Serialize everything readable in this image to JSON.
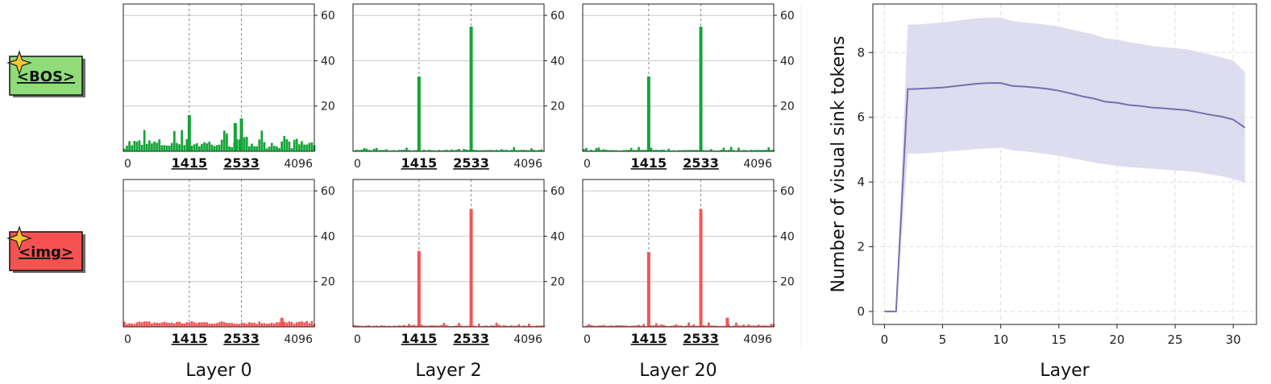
{
  "tokens": [
    {
      "label": "<BOS>",
      "fill": "#8fdc78",
      "bar_color": "#13a538"
    },
    {
      "label": "<img>",
      "fill": "#f75252",
      "bar_color": "#f45555"
    }
  ],
  "highlight_positions": [
    "1415",
    "2533"
  ],
  "x_end_label": "4096",
  "x_start_label": "0",
  "chart_data": [
    {
      "type": "bar",
      "layer_label": "Layer 0",
      "token": "<BOS>",
      "x_range": [
        0,
        4096
      ],
      "ylim": [
        0,
        65
      ],
      "yticks": [
        20,
        40,
        60
      ],
      "vertical_lines": [
        1415,
        2533
      ],
      "peaks": [
        {
          "x": 1415,
          "value": 16
        },
        {
          "x": 2533,
          "value": 14.5
        },
        {
          "x": 2400,
          "value": 12.5
        }
      ]
    },
    {
      "type": "bar",
      "layer_label": "Layer 2",
      "token": "<BOS>",
      "x_range": [
        0,
        4096
      ],
      "ylim": [
        0,
        65
      ],
      "yticks": [
        20,
        40,
        60
      ],
      "vertical_lines": [
        1415,
        2533
      ],
      "peaks": [
        {
          "x": 1415,
          "value": 33
        },
        {
          "x": 2533,
          "value": 55
        }
      ]
    },
    {
      "type": "bar",
      "layer_label": "Layer 20",
      "token": "<BOS>",
      "x_range": [
        0,
        4096
      ],
      "ylim": [
        0,
        65
      ],
      "yticks": [
        20,
        40,
        60
      ],
      "vertical_lines": [
        1415,
        2533
      ],
      "peaks": [
        {
          "x": 1415,
          "value": 33
        },
        {
          "x": 2533,
          "value": 55
        }
      ]
    },
    {
      "type": "bar",
      "layer_label": "Layer 0",
      "token": "<img>",
      "x_range": [
        0,
        4096
      ],
      "ylim": [
        0,
        65
      ],
      "yticks": [
        20,
        40,
        60
      ],
      "vertical_lines": [
        1415,
        2533
      ],
      "peaks": [
        {
          "x": 3400,
          "value": 4
        }
      ]
    },
    {
      "type": "bar",
      "layer_label": "Layer 2",
      "token": "<img>",
      "x_range": [
        0,
        4096
      ],
      "ylim": [
        0,
        65
      ],
      "yticks": [
        20,
        40,
        60
      ],
      "vertical_lines": [
        1415,
        2533
      ],
      "peaks": [
        {
          "x": 1415,
          "value": 33.5
        },
        {
          "x": 2533,
          "value": 52
        }
      ]
    },
    {
      "type": "bar",
      "layer_label": "Layer 20",
      "token": "<img>",
      "x_range": [
        0,
        4096
      ],
      "ylim": [
        0,
        65
      ],
      "yticks": [
        20,
        40,
        60
      ],
      "vertical_lines": [
        1415,
        2533
      ],
      "peaks": [
        {
          "x": 1415,
          "value": 33
        },
        {
          "x": 2533,
          "value": 52
        },
        {
          "x": 3100,
          "value": 4
        }
      ]
    },
    {
      "type": "line",
      "xlabel": "Layer",
      "ylabel": "Number of visual sink tokens",
      "xlim": [
        -1,
        32
      ],
      "ylim": [
        -0.4,
        9.5
      ],
      "xticks": [
        0,
        5,
        10,
        15,
        20,
        25,
        30
      ],
      "yticks": [
        0,
        2,
        4,
        6,
        8
      ],
      "grid": true,
      "line_color": "#7570b0",
      "band_color": "#d8d6ec",
      "x": [
        0,
        1,
        2,
        3,
        4,
        5,
        6,
        7,
        8,
        9,
        10,
        11,
        12,
        13,
        14,
        15,
        16,
        17,
        18,
        19,
        20,
        21,
        22,
        23,
        24,
        25,
        26,
        27,
        28,
        29,
        30,
        31
      ],
      "y": [
        0,
        0,
        6.87,
        6.88,
        6.9,
        6.92,
        6.96,
        7.0,
        7.04,
        7.06,
        7.06,
        6.97,
        6.95,
        6.92,
        6.88,
        6.82,
        6.74,
        6.65,
        6.58,
        6.48,
        6.45,
        6.38,
        6.35,
        6.3,
        6.28,
        6.25,
        6.22,
        6.15,
        6.08,
        6.02,
        5.93,
        5.68
      ],
      "y_lower": [
        0,
        0,
        4.88,
        4.88,
        4.9,
        4.93,
        4.96,
        4.99,
        5.02,
        5.04,
        5.06,
        4.98,
        4.95,
        4.91,
        4.86,
        4.81,
        4.74,
        4.68,
        4.6,
        4.55,
        4.5,
        4.46,
        4.44,
        4.41,
        4.38,
        4.36,
        4.34,
        4.3,
        4.24,
        4.18,
        4.1,
        3.98
      ],
      "y_upper": [
        0,
        0,
        8.86,
        8.87,
        8.9,
        8.93,
        8.97,
        9.02,
        9.06,
        9.08,
        9.08,
        8.97,
        8.93,
        8.9,
        8.86,
        8.8,
        8.72,
        8.64,
        8.56,
        8.44,
        8.4,
        8.32,
        8.27,
        8.2,
        8.17,
        8.14,
        8.1,
        8.02,
        7.94,
        7.85,
        7.75,
        7.4
      ]
    }
  ]
}
